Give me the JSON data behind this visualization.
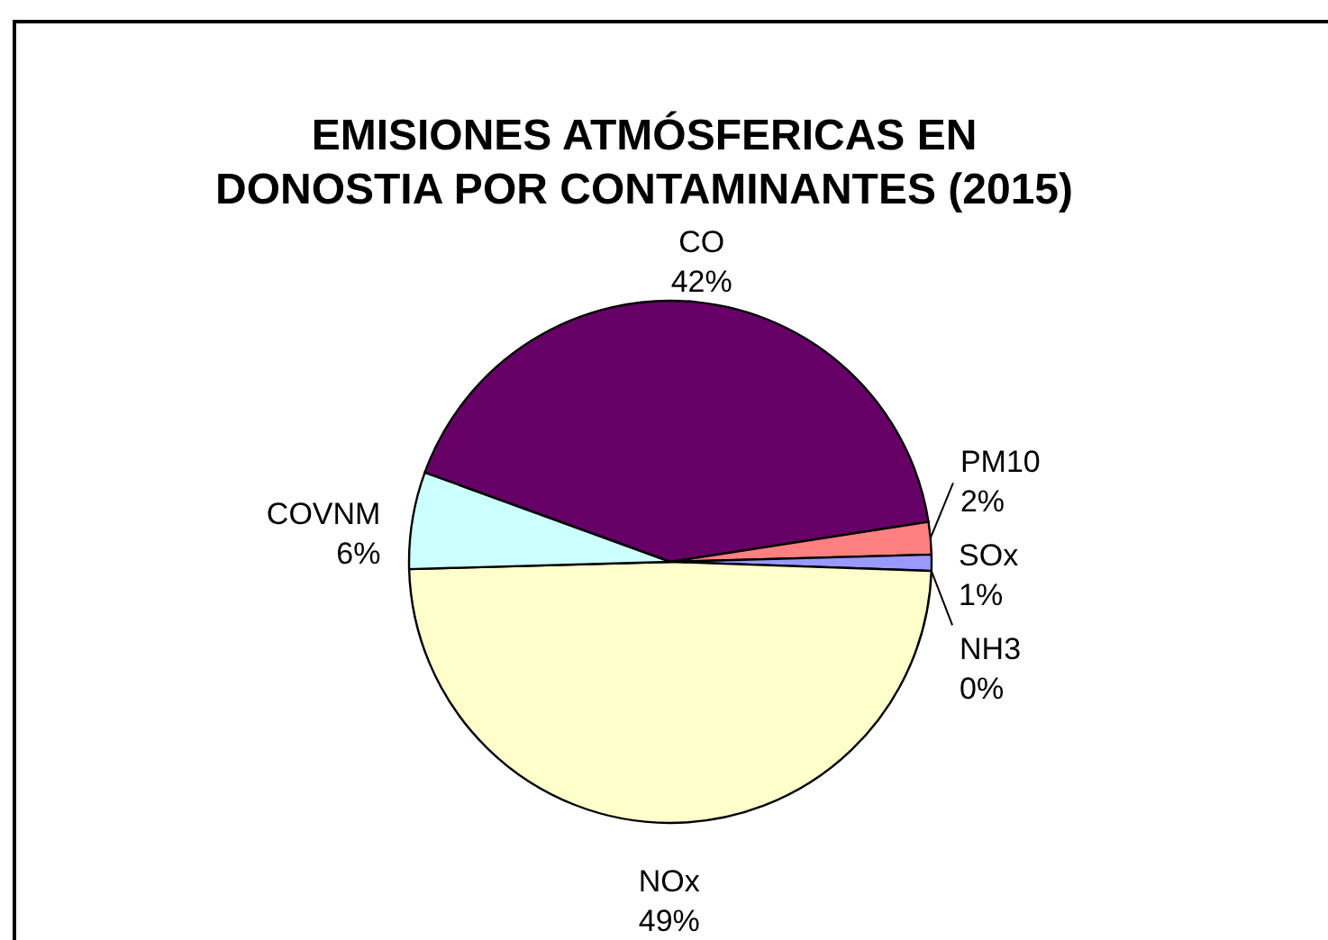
{
  "chart_data": {
    "type": "pie",
    "title": "EMISIONES ATMÓSFERICAS EN\nDONOSTIA POR CONTAMINANTES (2015)",
    "categories": [
      "CO",
      "PM10",
      "SOx",
      "NH3",
      "NOx",
      "COVNM"
    ],
    "values": [
      42,
      2,
      1,
      0,
      49,
      6
    ],
    "value_labels": [
      "42%",
      "2%",
      "1%",
      "0%",
      "49%",
      "6%"
    ],
    "colors": [
      "#660066",
      "#ff8080",
      "#9999ff",
      "#330066",
      "#ffffcc",
      "#ccffff"
    ]
  }
}
